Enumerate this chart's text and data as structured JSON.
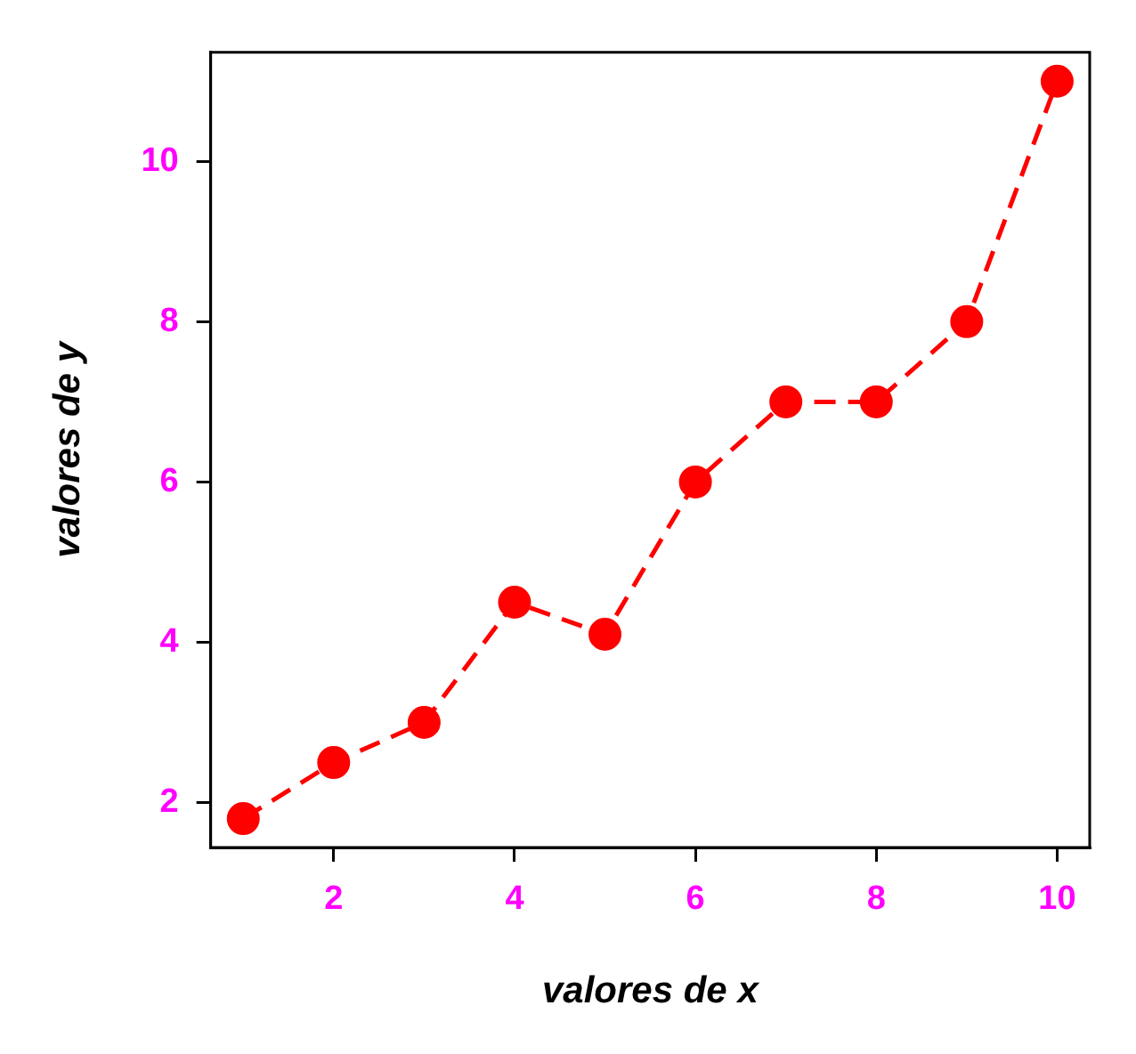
{
  "chart_data": {
    "type": "line",
    "xlabel": "valores de x",
    "ylabel": "valores de y",
    "x": [
      1,
      2,
      3,
      4,
      5,
      6,
      7,
      8,
      9,
      10
    ],
    "series": [
      {
        "color": "#ff0000",
        "values": [
          1.8,
          2.5,
          3.0,
          4.5,
          4.1,
          6.0,
          7.0,
          7.0,
          8.0,
          11.0
        ]
      }
    ],
    "xlim": [
      0.64,
      10.36
    ],
    "ylim": [
      1.44,
      11.36
    ],
    "xticks": [
      2,
      4,
      6,
      8,
      10
    ],
    "yticks": [
      2,
      4,
      6,
      8,
      10
    ],
    "grid": false,
    "legend": false,
    "marker": "circle",
    "line_style": "dashed"
  }
}
